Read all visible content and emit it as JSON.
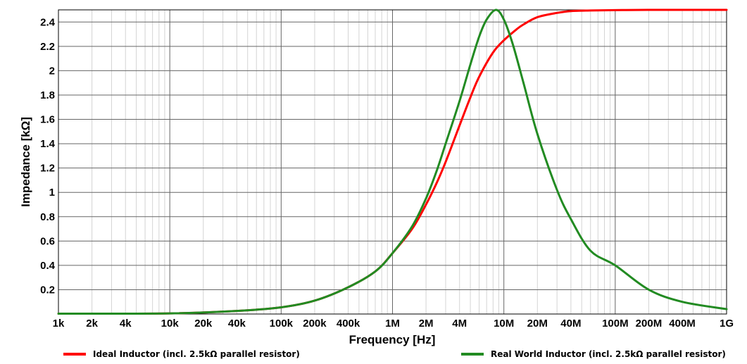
{
  "chart_data": {
    "type": "line",
    "title": "",
    "xlabel": "Frequency [Hz]",
    "ylabel": "Impedance [kΩ]",
    "x_scale": "log",
    "xlim": [
      1000,
      1000000000
    ],
    "ylim": [
      0,
      2.5
    ],
    "grid": true,
    "legend_position": "bottom",
    "x_ticks": [
      {
        "value": 1000,
        "label": "1k"
      },
      {
        "value": 2000,
        "label": "2k"
      },
      {
        "value": 4000,
        "label": "4k"
      },
      {
        "value": 10000,
        "label": "10k"
      },
      {
        "value": 20000,
        "label": "20k"
      },
      {
        "value": 40000,
        "label": "40k"
      },
      {
        "value": 100000,
        "label": "100k"
      },
      {
        "value": 200000,
        "label": "200k"
      },
      {
        "value": 400000,
        "label": "400k"
      },
      {
        "value": 1000000,
        "label": "1M"
      },
      {
        "value": 2000000,
        "label": "2M"
      },
      {
        "value": 4000000,
        "label": "4M"
      },
      {
        "value": 10000000,
        "label": "10M"
      },
      {
        "value": 20000000,
        "label": "20M"
      },
      {
        "value": 40000000,
        "label": "40M"
      },
      {
        "value": 100000000,
        "label": "100M"
      },
      {
        "value": 200000000,
        "label": "200M"
      },
      {
        "value": 400000000,
        "label": "400M"
      },
      {
        "value": 1000000000,
        "label": "1G"
      }
    ],
    "y_ticks": [
      {
        "value": 0.2,
        "label": "0.2"
      },
      {
        "value": 0.4,
        "label": "0.4"
      },
      {
        "value": 0.6,
        "label": "0.6"
      },
      {
        "value": 0.8,
        "label": "0.8"
      },
      {
        "value": 1.0,
        "label": "1"
      },
      {
        "value": 1.2,
        "label": "1.2"
      },
      {
        "value": 1.4,
        "label": "1.4"
      },
      {
        "value": 1.6,
        "label": "1.6"
      },
      {
        "value": 1.8,
        "label": "1.8"
      },
      {
        "value": 2.0,
        "label": "2"
      },
      {
        "value": 2.2,
        "label": "2.2"
      },
      {
        "value": 2.4,
        "label": "2.4"
      }
    ],
    "series": [
      {
        "name": "Ideal Inductor (incl. 2.5kΩ parallel resistor)",
        "color": "#ff0000",
        "points": [
          [
            1000,
            0.003
          ],
          [
            10000,
            0.005
          ],
          [
            40000,
            0.025
          ],
          [
            100000,
            0.055
          ],
          [
            200000,
            0.11
          ],
          [
            400000,
            0.22
          ],
          [
            700000,
            0.35
          ],
          [
            1000000,
            0.5
          ],
          [
            1500000,
            0.7
          ],
          [
            2000000,
            0.9
          ],
          [
            2500000,
            1.08
          ],
          [
            3000000,
            1.25
          ],
          [
            4000000,
            1.55
          ],
          [
            5000000,
            1.78
          ],
          [
            6000000,
            1.95
          ],
          [
            8000000,
            2.15
          ],
          [
            10000000,
            2.25
          ],
          [
            13000000,
            2.34
          ],
          [
            15000000,
            2.38
          ],
          [
            20000000,
            2.44
          ],
          [
            30000000,
            2.475
          ],
          [
            40000000,
            2.49
          ],
          [
            60000000,
            2.495
          ],
          [
            100000000,
            2.498
          ],
          [
            200000000,
            2.5
          ],
          [
            1000000000,
            2.5
          ]
        ]
      },
      {
        "name": "Real World Inductor (incl. 2.5kΩ parallel resistor)",
        "color": "#228b22",
        "points": [
          [
            1000,
            0.003
          ],
          [
            10000,
            0.005
          ],
          [
            40000,
            0.025
          ],
          [
            100000,
            0.055
          ],
          [
            200000,
            0.11
          ],
          [
            400000,
            0.22
          ],
          [
            700000,
            0.35
          ],
          [
            1000000,
            0.5
          ],
          [
            1500000,
            0.72
          ],
          [
            2000000,
            0.95
          ],
          [
            2500000,
            1.18
          ],
          [
            3000000,
            1.4
          ],
          [
            4000000,
            1.75
          ],
          [
            5000000,
            2.05
          ],
          [
            6000000,
            2.28
          ],
          [
            7000000,
            2.42
          ],
          [
            8500000,
            2.5
          ],
          [
            10000000,
            2.42
          ],
          [
            12000000,
            2.22
          ],
          [
            15000000,
            1.9
          ],
          [
            20000000,
            1.48
          ],
          [
            30000000,
            1.02
          ],
          [
            40000000,
            0.78
          ],
          [
            60000000,
            0.52
          ],
          [
            100000000,
            0.4
          ],
          [
            200000000,
            0.2
          ],
          [
            400000000,
            0.1
          ],
          [
            1000000000,
            0.04
          ]
        ]
      }
    ]
  }
}
